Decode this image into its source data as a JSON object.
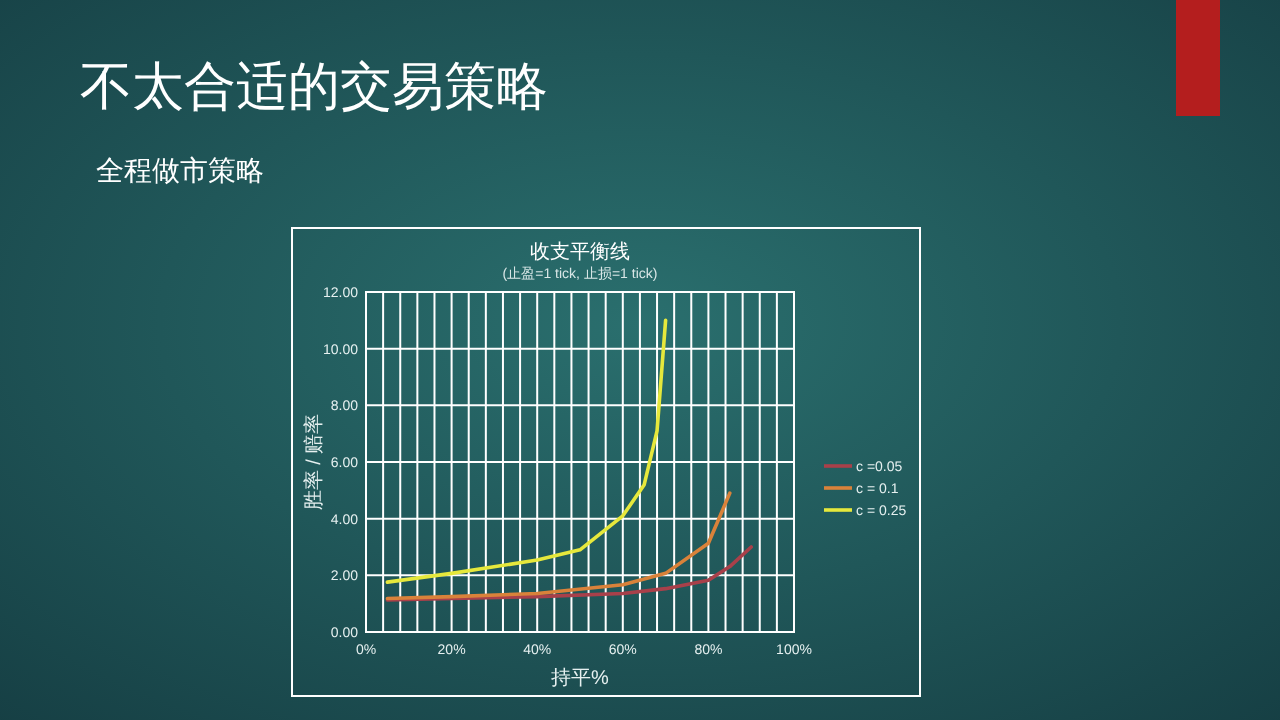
{
  "chart_data": {
    "type": "line",
    "title": "收支平衡线",
    "subtitle": "(止盈=1 tick, 止损=1 tick)",
    "annotations": [
      "不太合适的交易策略",
      "全程做市策略"
    ],
    "xlabel": "持平%",
    "ylabel": "胜率 / 赔率",
    "xlim": [
      0,
      100
    ],
    "xticks": [
      {
        "value": 0,
        "label": "0%"
      },
      {
        "value": 4,
        "label": null
      },
      {
        "value": 8,
        "label": null
      },
      {
        "value": 12,
        "label": null
      },
      {
        "value": 16,
        "label": null
      },
      {
        "value": 20,
        "label": "20%"
      },
      {
        "value": 24,
        "label": null
      },
      {
        "value": 28,
        "label": null
      },
      {
        "value": 32,
        "label": null
      },
      {
        "value": 36,
        "label": null
      },
      {
        "value": 40,
        "label": "40%"
      },
      {
        "value": 44,
        "label": null
      },
      {
        "value": 48,
        "label": null
      },
      {
        "value": 52,
        "label": null
      },
      {
        "value": 56,
        "label": null
      },
      {
        "value": 60,
        "label": "60%"
      },
      {
        "value": 64,
        "label": null
      },
      {
        "value": 68,
        "label": null
      },
      {
        "value": 72,
        "label": null
      },
      {
        "value": 76,
        "label": null
      },
      {
        "value": 80,
        "label": "80%"
      },
      {
        "value": 84,
        "label": null
      },
      {
        "value": 88,
        "label": null
      },
      {
        "value": 92,
        "label": null
      },
      {
        "value": 96,
        "label": null
      },
      {
        "value": 100,
        "label": "100%"
      }
    ],
    "ylim": [
      0,
      12
    ],
    "yticks": [
      {
        "value": 0,
        "label": "0.00"
      },
      {
        "value": 2,
        "label": "2.00"
      },
      {
        "value": 4,
        "label": "4.00"
      },
      {
        "value": 6,
        "label": "6.00"
      },
      {
        "value": 8,
        "label": "8.00"
      },
      {
        "value": 10,
        "label": "10.00"
      },
      {
        "value": 12,
        "label": "12.00"
      }
    ],
    "grid": true,
    "legend": "right",
    "marker": "none",
    "line_style": "solid",
    "series": [
      {
        "name": "c =0.05",
        "color": "#a8404a",
        "x": [
          5,
          20,
          40,
          60,
          70,
          80,
          85,
          90
        ],
        "values": [
          1.13,
          1.18,
          1.25,
          1.36,
          1.53,
          1.83,
          2.31,
          3.0
        ]
      },
      {
        "name": "c = 0.1",
        "color": "#d9823a",
        "x": [
          5,
          20,
          40,
          60,
          70,
          80,
          85
        ],
        "values": [
          1.18,
          1.25,
          1.36,
          1.67,
          2.07,
          3.13,
          4.9
        ]
      },
      {
        "name": "c = 0.25",
        "color": "#e6e83c",
        "x": [
          5,
          20,
          40,
          50,
          60,
          65,
          68,
          70
        ],
        "values": [
          1.76,
          2.07,
          2.54,
          2.9,
          4.1,
          5.2,
          7.1,
          11.0
        ]
      }
    ]
  }
}
